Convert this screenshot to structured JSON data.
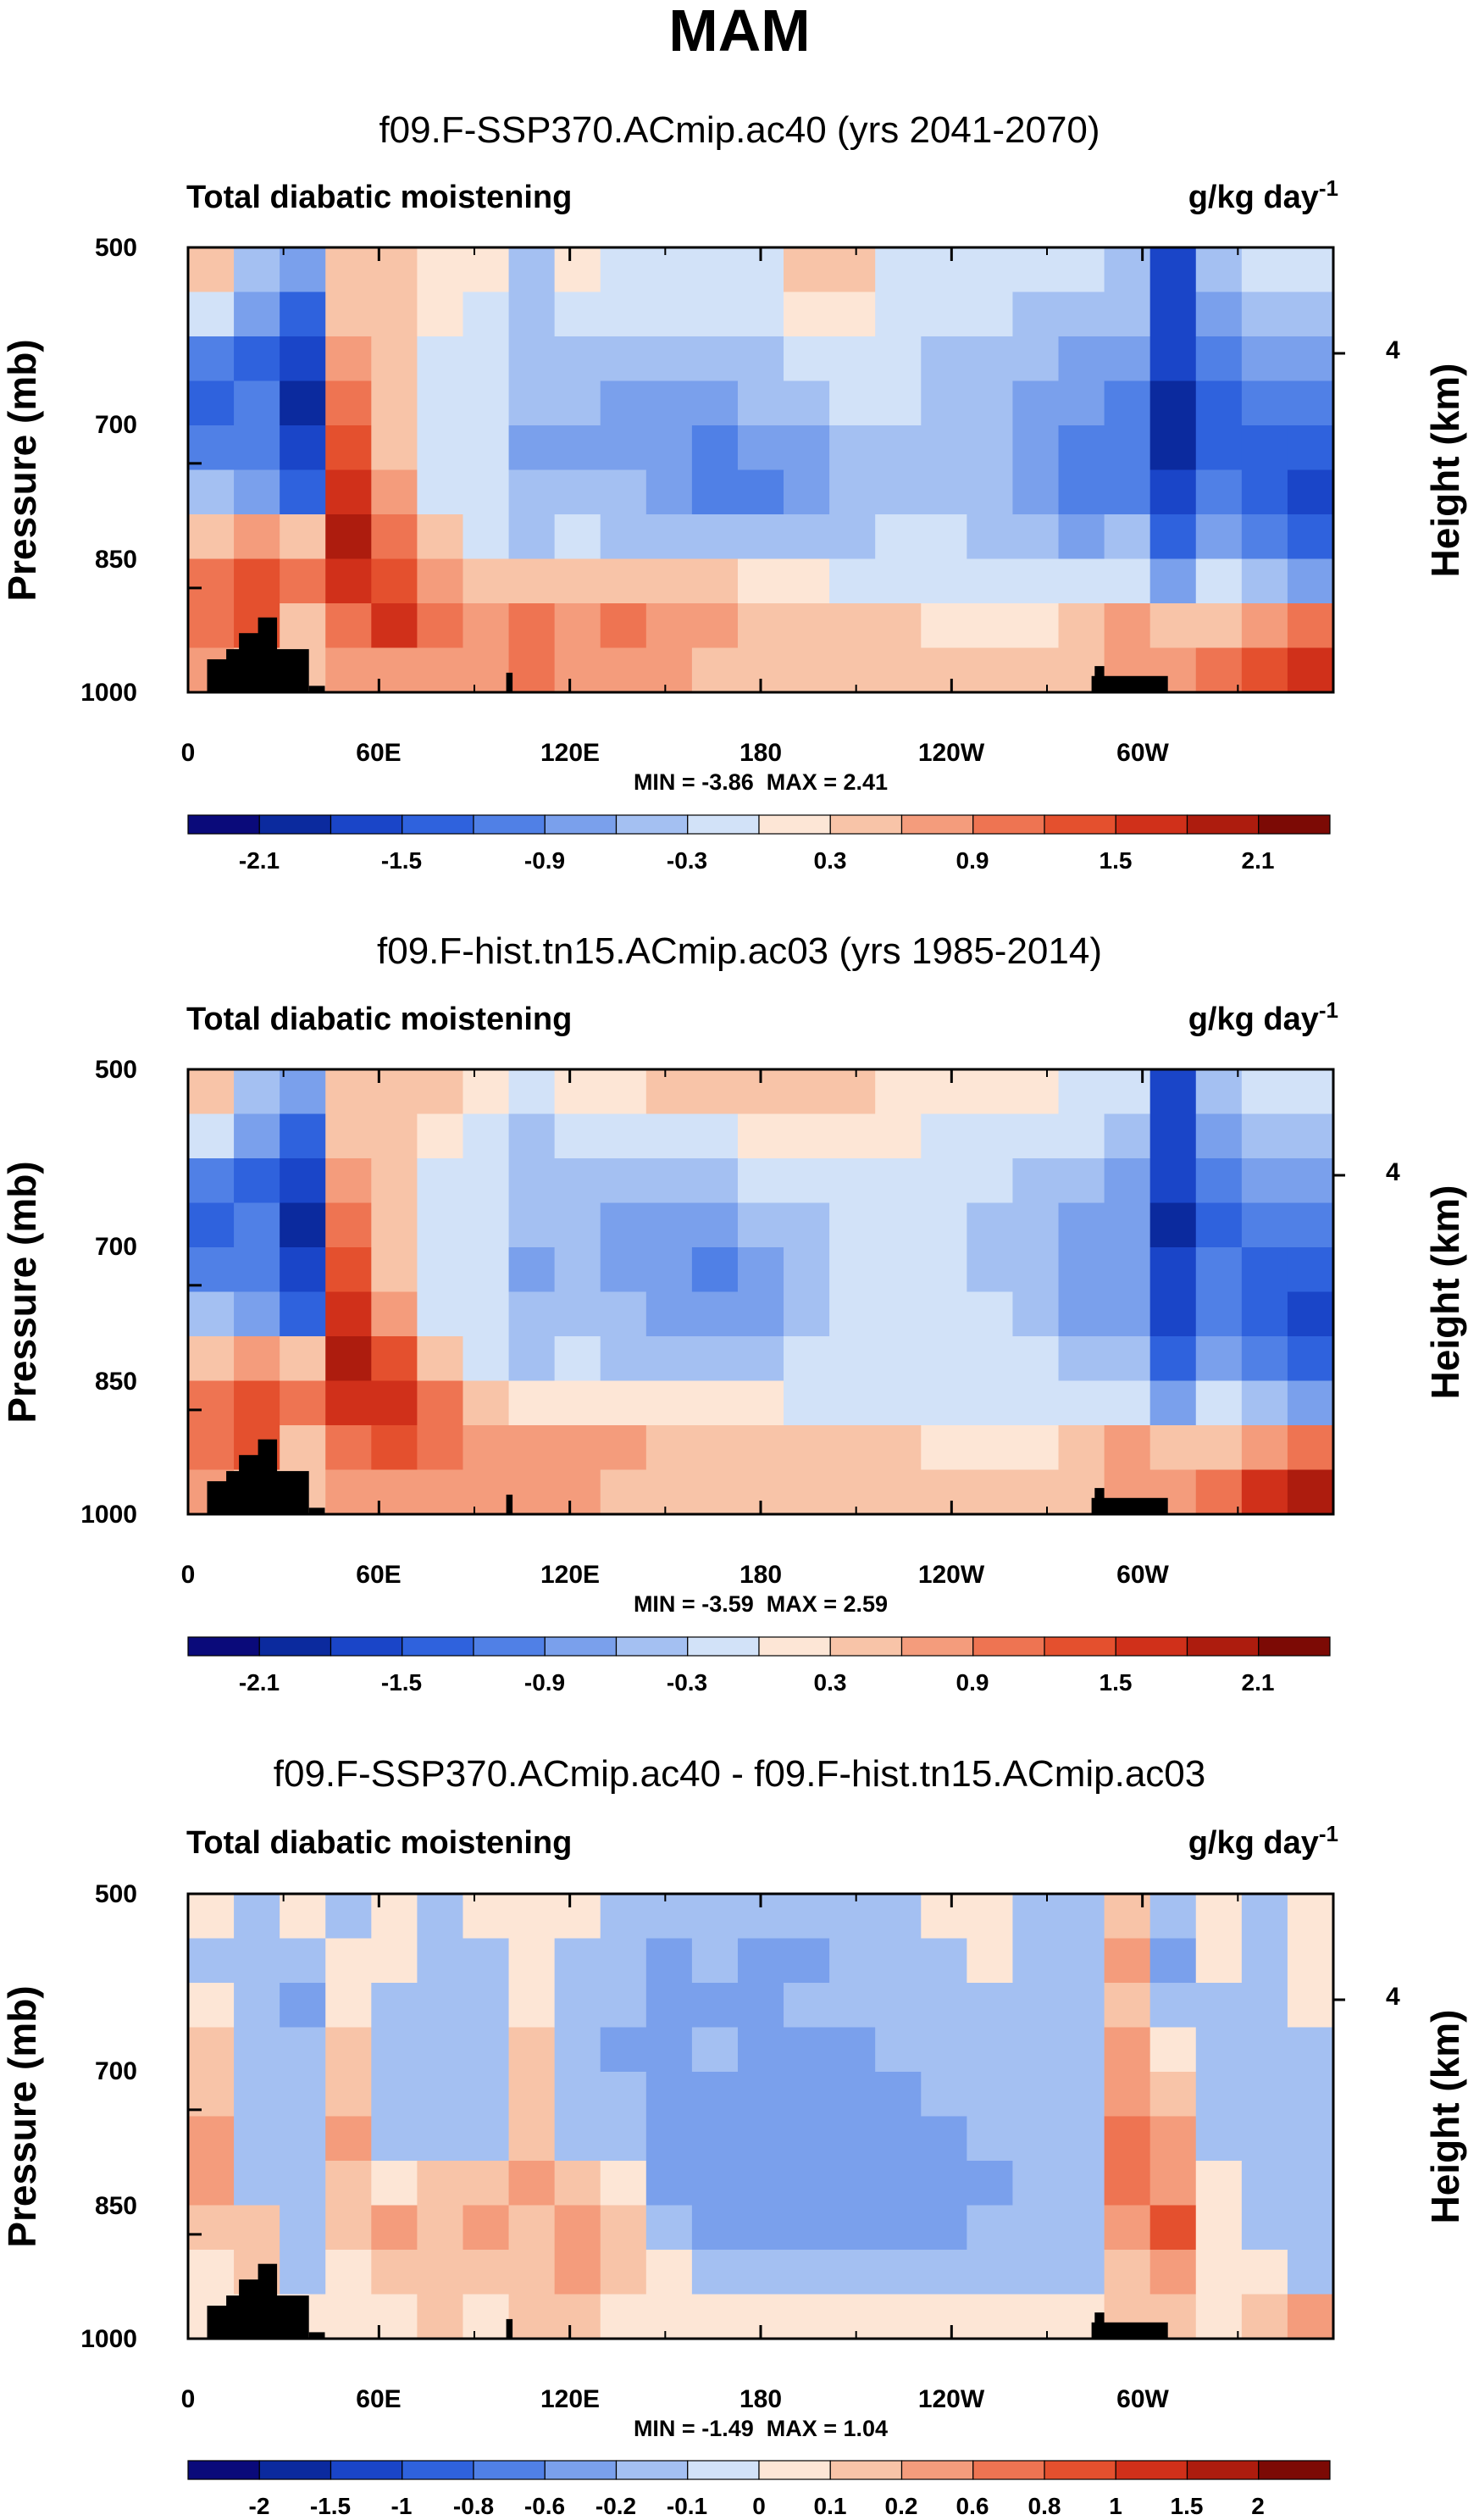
{
  "figure": {
    "title": "MAM"
  },
  "chart_data": [
    {
      "type": "heatmap",
      "title": "f09.F-SSP370.ACmip.ac40 (yrs 2041-2070)",
      "left_label": "Total diabatic moistening",
      "units_label": "g/kg day",
      "units_exponent": "-1",
      "ylabel": "Pressure (mb)",
      "ylabel_right": "Height (km)",
      "ylim": [
        1000,
        500
      ],
      "y_ticks": [
        "500",
        "700",
        "850",
        "1000"
      ],
      "y_ticks_right": [
        "4"
      ],
      "x_ticks": [
        "0",
        "60E",
        "120E",
        "180",
        "120W",
        "60W"
      ],
      "stats": "MIN = -3.86  MAX = 2.41",
      "colorbar": {
        "labels": [
          "-2.1",
          "-1.5",
          "-0.9",
          "-0.3",
          "0.3",
          "0.9",
          "1.5",
          "2.1"
        ],
        "levels": [
          -2.4,
          -2.1,
          -1.8,
          -1.5,
          -1.2,
          -0.9,
          -0.6,
          -0.3,
          0,
          0.3,
          0.6,
          0.9,
          1.2,
          1.5,
          1.8,
          2.1,
          2.4
        ]
      },
      "field": [
        [
          0.3,
          -0.6,
          -0.9,
          0.3,
          0.3,
          0,
          0,
          -0.6,
          0,
          -0.3,
          -0.3,
          -0.3,
          -0.3,
          0.3,
          0.3,
          -0.3,
          -0.3,
          -0.3,
          -0.3,
          -0.3,
          -0.6,
          -1.8,
          -0.6,
          -0.3,
          -0.3
        ],
        [
          -0.3,
          -0.9,
          -1.5,
          0.3,
          0.3,
          0,
          -0.3,
          -0.6,
          -0.3,
          -0.3,
          -0.3,
          -0.3,
          -0.3,
          0,
          0,
          -0.3,
          -0.3,
          -0.3,
          -0.6,
          -0.6,
          -0.6,
          -1.8,
          -0.9,
          -0.6,
          -0.6
        ],
        [
          -1.2,
          -1.5,
          -1.8,
          0.6,
          0.3,
          -0.3,
          -0.3,
          -0.6,
          -0.6,
          -0.6,
          -0.6,
          -0.6,
          -0.6,
          -0.3,
          -0.3,
          -0.3,
          -0.6,
          -0.6,
          -0.6,
          -0.9,
          -0.9,
          -1.8,
          -1.2,
          -0.9,
          -0.9
        ],
        [
          -1.5,
          -1.2,
          -2.1,
          0.9,
          0.3,
          -0.3,
          -0.3,
          -0.6,
          -0.6,
          -0.9,
          -0.9,
          -0.9,
          -0.6,
          -0.6,
          -0.3,
          -0.3,
          -0.6,
          -0.6,
          -0.9,
          -0.9,
          -1.2,
          -2.1,
          -1.5,
          -1.2,
          -1.2
        ],
        [
          -1.2,
          -1.2,
          -1.8,
          1.2,
          0.3,
          -0.3,
          -0.3,
          -0.9,
          -0.9,
          -0.9,
          -0.9,
          -1.2,
          -0.9,
          -0.9,
          -0.6,
          -0.6,
          -0.6,
          -0.6,
          -0.9,
          -1.2,
          -1.2,
          -2.1,
          -1.5,
          -1.5,
          -1.5
        ],
        [
          -0.6,
          -0.9,
          -1.5,
          1.5,
          0.6,
          -0.3,
          -0.3,
          -0.6,
          -0.6,
          -0.6,
          -0.9,
          -1.2,
          -1.2,
          -0.9,
          -0.6,
          -0.6,
          -0.6,
          -0.6,
          -0.9,
          -1.2,
          -1.2,
          -1.8,
          -1.2,
          -1.5,
          -1.8
        ],
        [
          0.3,
          0.6,
          0.3,
          1.8,
          0.9,
          0.3,
          -0.3,
          -0.6,
          -0.3,
          -0.6,
          -0.6,
          -0.6,
          -0.6,
          -0.6,
          -0.6,
          -0.3,
          -0.3,
          -0.6,
          -0.6,
          -0.9,
          -0.6,
          -1.5,
          -0.9,
          -1.2,
          -1.5
        ],
        [
          0.9,
          1.2,
          0.9,
          1.5,
          1.2,
          0.6,
          0.3,
          0.3,
          0.3,
          0.3,
          0.3,
          0.3,
          0,
          0,
          -0.3,
          -0.3,
          -0.3,
          -0.3,
          -0.3,
          -0.3,
          -0.3,
          -0.9,
          -0.3,
          -0.6,
          -0.9
        ],
        [
          0.9,
          1.2,
          0.3,
          0.9,
          1.5,
          0.9,
          0.6,
          0.9,
          0.6,
          0.9,
          0.6,
          0.6,
          0.3,
          0.3,
          0.3,
          0.3,
          0,
          0,
          0,
          0.3,
          0.6,
          0.3,
          0.3,
          0.6,
          0.9
        ],
        [
          0.6,
          0.3,
          0.3,
          0.6,
          0.6,
          0.6,
          0.6,
          0.9,
          0.6,
          0.6,
          0.6,
          0.3,
          0.3,
          0.3,
          0.3,
          0.3,
          0.3,
          0.3,
          0.3,
          0.3,
          0.6,
          0.6,
          0.9,
          1.2,
          1.5
        ]
      ]
    },
    {
      "type": "heatmap",
      "title": "f09.F-hist.tn15.ACmip.ac03 (yrs 1985-2014)",
      "left_label": "Total diabatic moistening",
      "units_label": "g/kg day",
      "units_exponent": "-1",
      "ylabel": "Pressure (mb)",
      "ylabel_right": "Height (km)",
      "ylim": [
        1000,
        500
      ],
      "y_ticks": [
        "500",
        "700",
        "850",
        "1000"
      ],
      "y_ticks_right": [
        "4"
      ],
      "x_ticks": [
        "0",
        "60E",
        "120E",
        "180",
        "120W",
        "60W"
      ],
      "stats": "MIN = -3.59  MAX = 2.59",
      "colorbar": {
        "labels": [
          "-2.1",
          "-1.5",
          "-0.9",
          "-0.3",
          "0.3",
          "0.9",
          "1.5",
          "2.1"
        ],
        "levels": [
          -2.4,
          -2.1,
          -1.8,
          -1.5,
          -1.2,
          -0.9,
          -0.6,
          -0.3,
          0,
          0.3,
          0.6,
          0.9,
          1.2,
          1.5,
          1.8,
          2.1,
          2.4
        ]
      },
      "field": [
        [
          0.3,
          -0.6,
          -0.9,
          0.3,
          0.3,
          0.3,
          0,
          -0.3,
          0,
          0,
          0.3,
          0.3,
          0.3,
          0.3,
          0.3,
          0,
          0,
          0,
          0,
          -0.3,
          -0.3,
          -1.8,
          -0.6,
          -0.3,
          -0.3
        ],
        [
          -0.3,
          -0.9,
          -1.5,
          0.3,
          0.3,
          0,
          -0.3,
          -0.6,
          -0.3,
          -0.3,
          -0.3,
          -0.3,
          0,
          0,
          0,
          0,
          -0.3,
          -0.3,
          -0.3,
          -0.3,
          -0.6,
          -1.8,
          -0.9,
          -0.6,
          -0.6
        ],
        [
          -1.2,
          -1.5,
          -1.8,
          0.6,
          0.3,
          -0.3,
          -0.3,
          -0.6,
          -0.6,
          -0.6,
          -0.6,
          -0.6,
          -0.3,
          -0.3,
          -0.3,
          -0.3,
          -0.3,
          -0.3,
          -0.6,
          -0.6,
          -0.9,
          -1.8,
          -1.2,
          -0.9,
          -0.9
        ],
        [
          -1.5,
          -1.2,
          -2.1,
          0.9,
          0.3,
          -0.3,
          -0.3,
          -0.6,
          -0.6,
          -0.9,
          -0.9,
          -0.9,
          -0.6,
          -0.6,
          -0.3,
          -0.3,
          -0.3,
          -0.6,
          -0.6,
          -0.9,
          -0.9,
          -2.1,
          -1.5,
          -1.2,
          -1.2
        ],
        [
          -1.2,
          -1.2,
          -1.8,
          1.2,
          0.3,
          -0.3,
          -0.3,
          -0.9,
          -0.6,
          -0.9,
          -0.9,
          -1.2,
          -0.9,
          -0.6,
          -0.3,
          -0.3,
          -0.3,
          -0.6,
          -0.6,
          -0.9,
          -0.9,
          -1.8,
          -1.2,
          -1.5,
          -1.5
        ],
        [
          -0.6,
          -0.9,
          -1.5,
          1.5,
          0.6,
          -0.3,
          -0.3,
          -0.6,
          -0.6,
          -0.6,
          -0.9,
          -0.9,
          -0.9,
          -0.6,
          -0.3,
          -0.3,
          -0.3,
          -0.3,
          -0.6,
          -0.9,
          -0.9,
          -1.8,
          -1.2,
          -1.5,
          -1.8
        ],
        [
          0.3,
          0.6,
          0.3,
          1.8,
          1.2,
          0.3,
          -0.3,
          -0.6,
          -0.3,
          -0.6,
          -0.6,
          -0.6,
          -0.6,
          -0.3,
          -0.3,
          -0.3,
          -0.3,
          -0.3,
          -0.3,
          -0.6,
          -0.6,
          -1.5,
          -0.9,
          -1.2,
          -1.5
        ],
        [
          0.9,
          1.2,
          0.9,
          1.5,
          1.5,
          0.9,
          0.3,
          0,
          0,
          0,
          0,
          0,
          0,
          -0.3,
          -0.3,
          -0.3,
          -0.3,
          -0.3,
          -0.3,
          -0.3,
          -0.3,
          -0.9,
          -0.3,
          -0.6,
          -0.9
        ],
        [
          0.9,
          1.2,
          0.3,
          0.9,
          1.2,
          0.9,
          0.6,
          0.6,
          0.6,
          0.6,
          0.3,
          0.3,
          0.3,
          0.3,
          0.3,
          0.3,
          0,
          0,
          0,
          0.3,
          0.6,
          0.3,
          0.3,
          0.6,
          0.9
        ],
        [
          0.6,
          0.3,
          0.3,
          0.6,
          0.6,
          0.6,
          0.6,
          0.6,
          0.6,
          0.3,
          0.3,
          0.3,
          0.3,
          0.3,
          0.3,
          0.3,
          0.3,
          0.3,
          0.3,
          0.3,
          0.6,
          0.6,
          0.9,
          1.5,
          1.8
        ]
      ]
    },
    {
      "type": "heatmap",
      "title": "f09.F-SSP370.ACmip.ac40 - f09.F-hist.tn15.ACmip.ac03",
      "left_label": "Total diabatic moistening",
      "units_label": "g/kg day",
      "units_exponent": "-1",
      "ylabel": "Pressure (mb)",
      "ylabel_right": "Height (km)",
      "ylim": [
        1000,
        500
      ],
      "y_ticks": [
        "500",
        "700",
        "850",
        "1000"
      ],
      "y_ticks_right": [
        "4"
      ],
      "x_ticks": [
        "0",
        "60E",
        "120E",
        "180",
        "120W",
        "60W"
      ],
      "stats": "MIN = -1.49  MAX = 1.04",
      "colorbar": {
        "labels": [
          "-2",
          "-1.5",
          "-1",
          "-0.8",
          "-0.6",
          "-0.2",
          "-0.1",
          "0",
          "0.1",
          "0.2",
          "0.6",
          "0.8",
          "1",
          "1.5",
          "2"
        ],
        "levels": [
          -3,
          -2,
          -1.5,
          -1,
          -0.8,
          -0.6,
          -0.2,
          -0.1,
          0,
          0.1,
          0.2,
          0.6,
          0.8,
          1,
          1.5,
          2,
          3
        ]
      },
      "field": [
        [
          0.05,
          -0.15,
          0.05,
          -0.15,
          0.05,
          -0.15,
          0.05,
          0.05,
          0.05,
          -0.15,
          -0.15,
          -0.15,
          -0.15,
          -0.15,
          -0.15,
          -0.15,
          0.05,
          0.05,
          -0.15,
          -0.15,
          0.15,
          -0.15,
          0.05,
          -0.15,
          0.05
        ],
        [
          -0.15,
          -0.15,
          -0.15,
          0.05,
          0.05,
          -0.15,
          -0.15,
          0.05,
          -0.15,
          -0.15,
          -0.4,
          -0.15,
          -0.4,
          -0.4,
          -0.15,
          -0.15,
          -0.15,
          0.05,
          -0.15,
          -0.15,
          0.4,
          -0.4,
          0.05,
          -0.15,
          0.05
        ],
        [
          0.05,
          -0.15,
          -0.4,
          0.05,
          -0.15,
          -0.15,
          -0.15,
          0.05,
          -0.15,
          -0.15,
          -0.4,
          -0.4,
          -0.4,
          -0.15,
          -0.15,
          -0.15,
          -0.15,
          -0.15,
          -0.15,
          -0.15,
          0.15,
          -0.15,
          -0.15,
          -0.15,
          0.05
        ],
        [
          0.15,
          -0.15,
          -0.15,
          0.15,
          -0.15,
          -0.15,
          -0.15,
          0.15,
          -0.15,
          -0.4,
          -0.4,
          -0.15,
          -0.4,
          -0.4,
          -0.4,
          -0.15,
          -0.15,
          -0.15,
          -0.15,
          -0.15,
          0.4,
          0.05,
          -0.15,
          -0.15,
          -0.15
        ],
        [
          0.15,
          -0.15,
          -0.15,
          0.15,
          -0.15,
          -0.15,
          -0.15,
          0.15,
          -0.15,
          -0.15,
          -0.4,
          -0.4,
          -0.4,
          -0.4,
          -0.4,
          -0.4,
          -0.15,
          -0.15,
          -0.15,
          -0.15,
          0.4,
          0.15,
          -0.15,
          -0.15,
          -0.15
        ],
        [
          0.4,
          -0.15,
          -0.15,
          0.4,
          -0.15,
          -0.15,
          -0.15,
          0.15,
          -0.15,
          -0.15,
          -0.4,
          -0.4,
          -0.4,
          -0.4,
          -0.4,
          -0.4,
          -0.4,
          -0.15,
          -0.15,
          -0.15,
          0.7,
          0.4,
          -0.15,
          -0.15,
          -0.15
        ],
        [
          0.4,
          -0.15,
          -0.15,
          0.15,
          0.05,
          0.15,
          0.15,
          0.4,
          0.15,
          0.05,
          -0.4,
          -0.4,
          -0.4,
          -0.4,
          -0.4,
          -0.4,
          -0.4,
          -0.4,
          -0.15,
          -0.15,
          0.7,
          0.4,
          0.05,
          -0.15,
          -0.15
        ],
        [
          0.15,
          0.15,
          -0.15,
          0.15,
          0.4,
          0.15,
          0.4,
          0.15,
          0.4,
          0.15,
          -0.15,
          -0.4,
          -0.4,
          -0.4,
          -0.4,
          -0.4,
          -0.4,
          -0.15,
          -0.15,
          -0.15,
          0.4,
          0.9,
          0.05,
          -0.15,
          -0.15
        ],
        [
          0.05,
          0.15,
          -0.15,
          0.05,
          0.15,
          0.15,
          0.15,
          0.15,
          0.4,
          0.15,
          0.05,
          -0.15,
          -0.15,
          -0.15,
          -0.15,
          -0.15,
          -0.15,
          -0.15,
          -0.15,
          -0.15,
          0.15,
          0.4,
          0.05,
          0.05,
          -0.15
        ],
        [
          0.05,
          0.05,
          0.05,
          0.05,
          0.05,
          0.15,
          0.05,
          0.15,
          0.15,
          0.05,
          0.05,
          0.05,
          0.05,
          0.05,
          0.05,
          0.05,
          0.05,
          0.05,
          0.05,
          0.05,
          0.15,
          0.15,
          0.05,
          0.15,
          0.4
        ]
      ]
    }
  ],
  "colors": {
    "palette": [
      "#0a0a7a",
      "#0b2a9e",
      "#1a45c8",
      "#2f62dd",
      "#5080e6",
      "#7aa0ec",
      "#a4c0f2",
      "#d2e2f8",
      "#fde6d6",
      "#f8c4a8",
      "#f49c7c",
      "#ee7452",
      "#e4502e",
      "#d0301a",
      "#ad1c0e",
      "#7c0a05"
    ],
    "terrain": "#000000",
    "frame": "#000000"
  }
}
